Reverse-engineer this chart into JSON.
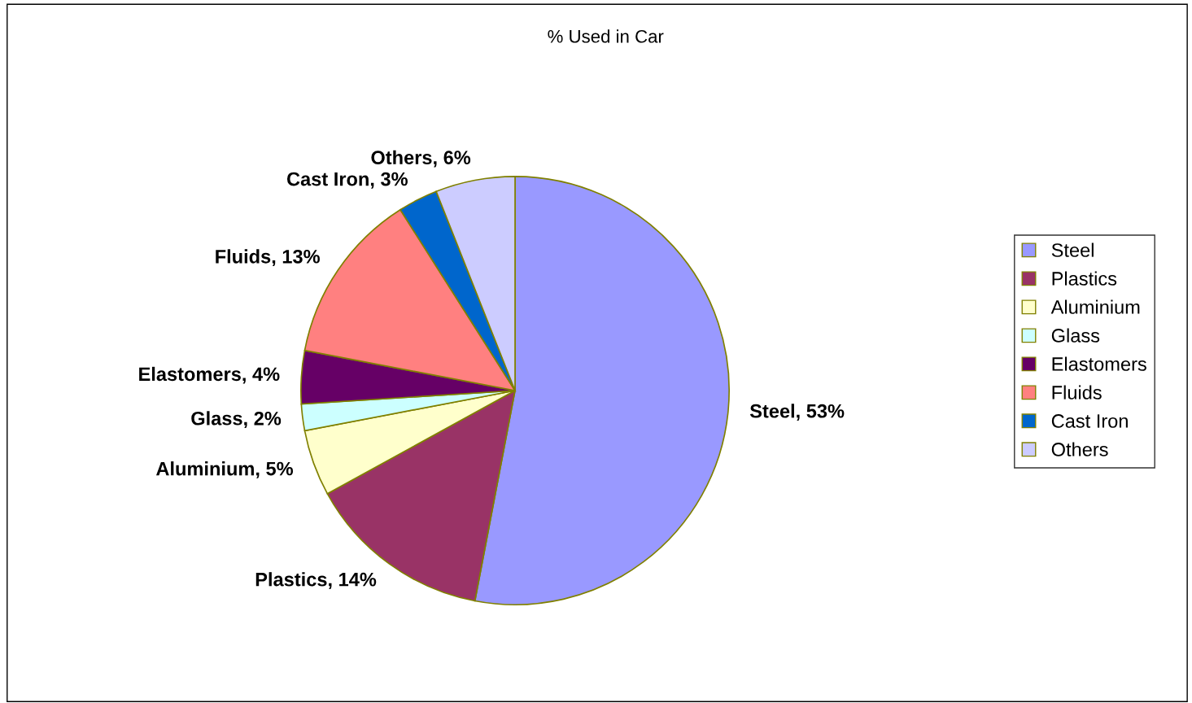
{
  "chart_data": {
    "type": "pie",
    "title": "% Used in Car",
    "categories": [
      "Steel",
      "Plastics",
      "Aluminium",
      "Glass",
      "Elastomers",
      "Fluids",
      "Cast Iron",
      "Others"
    ],
    "values": [
      53,
      14,
      5,
      2,
      4,
      13,
      3,
      6
    ],
    "colors": [
      "#9999ff",
      "#993366",
      "#ffffcc",
      "#ccffff",
      "#660066",
      "#ff8080",
      "#0066cc",
      "#ccccff"
    ],
    "value_labels": [
      "Steel, 53%",
      "Plastics, 14%",
      "Aluminium, 5%",
      "Glass, 2%",
      "Elastomers, 4%",
      "Fluids, 13%",
      "Cast Iron, 3%",
      "Others, 6%"
    ],
    "legend": "right"
  }
}
